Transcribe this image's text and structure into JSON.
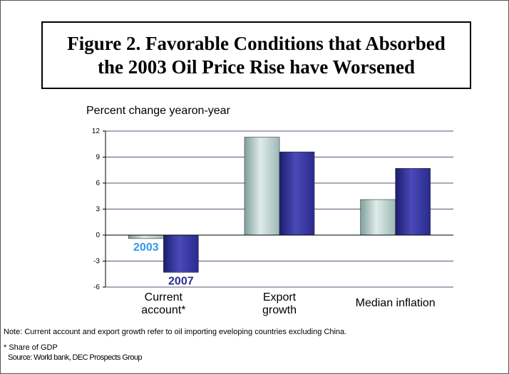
{
  "title": "Figure 2. Favorable Conditions that Absorbed the 2003 Oil Price Rise have Worsened",
  "chart_data": {
    "type": "bar",
    "ylabel": "Percent change yearon-year",
    "xlabel": "",
    "categories": [
      "Current account*",
      "Export growth",
      "Median inflation"
    ],
    "series": [
      {
        "name": "2003",
        "values": [
          -0.4,
          11.3,
          4.1
        ],
        "color": "#9db9b6"
      },
      {
        "name": "2007",
        "values": [
          -4.3,
          9.6,
          7.7
        ],
        "color": "#2a2a8f"
      }
    ],
    "ylim": [
      -6,
      12
    ],
    "yticks": [
      12,
      9,
      6,
      3,
      0,
      -3,
      -6
    ],
    "grid": true,
    "legend": "inline-labels",
    "series_label_colors": {
      "2003": "#3399ee",
      "2007": "#2a2a8f"
    }
  },
  "notes": {
    "note": "Note: Current account and export growth refer to oil importing eveloping countries excluding China.",
    "footnote": "* Share of GDP",
    "source": "Source: World bank, DEC Prospects Group"
  }
}
